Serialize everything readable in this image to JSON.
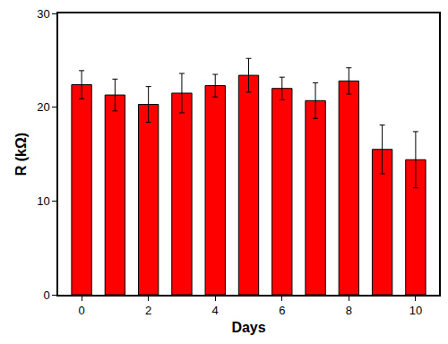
{
  "chart_data": {
    "type": "bar",
    "x_label": "Days",
    "y_label": "R (kΩ)",
    "x": [
      0,
      1,
      2,
      3,
      4,
      5,
      6,
      7,
      8,
      9,
      10
    ],
    "values": [
      22.4,
      21.3,
      20.3,
      21.5,
      22.3,
      23.4,
      22.0,
      20.7,
      22.8,
      15.5,
      14.4
    ],
    "errors": [
      1.5,
      1.7,
      1.9,
      2.1,
      1.2,
      1.8,
      1.2,
      1.9,
      1.4,
      2.6,
      3.0
    ],
    "color": "#ff0000",
    "xlim": [
      -0.7,
      10.7
    ],
    "xticks": [
      0,
      2,
      4,
      6,
      8,
      10
    ],
    "ylim": [
      0,
      30
    ],
    "yticks": [
      0,
      10,
      20,
      30
    ],
    "grid": false
  }
}
